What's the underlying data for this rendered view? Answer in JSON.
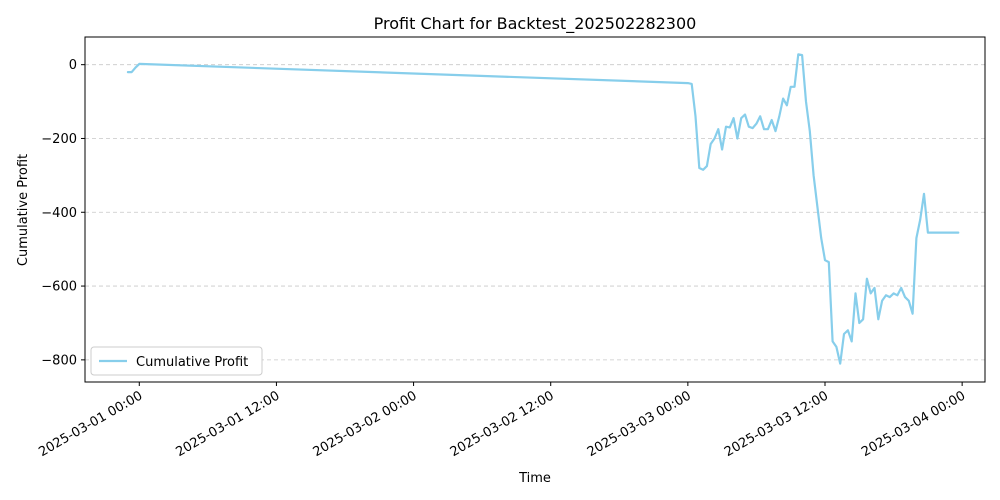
{
  "chart_data": {
    "type": "line",
    "title": "Profit Chart for Backtest_202502282300",
    "xlabel": "Time",
    "ylabel": "Cumulative Profit",
    "grid": "y-dashed",
    "legend": {
      "position": "lower-left",
      "entries": [
        "Cumulative Profit"
      ]
    },
    "color": "#87ceeb",
    "xlim": [
      "2025-02-28 19:15",
      "2025-03-04 02:00"
    ],
    "ylim": [
      -860,
      75
    ],
    "x_ticks": [
      {
        "x": "2025-03-01 00:00",
        "label": "2025-03-01 00:00"
      },
      {
        "x": "2025-03-01 12:00",
        "label": "2025-03-01 12:00"
      },
      {
        "x": "2025-03-02 00:00",
        "label": "2025-03-02 00:00"
      },
      {
        "x": "2025-03-02 12:00",
        "label": "2025-03-02 12:00"
      },
      {
        "x": "2025-03-03 00:00",
        "label": "2025-03-03 00:00"
      },
      {
        "x": "2025-03-03 12:00",
        "label": "2025-03-03 12:00"
      },
      {
        "x": "2025-03-04 00:00",
        "label": "2025-03-04 00:00"
      }
    ],
    "y_ticks": [
      0,
      -200,
      -400,
      -600,
      -800
    ],
    "series": [
      {
        "name": "Cumulative Profit",
        "x": [
          "2025-02-28 23:00",
          "2025-02-28 23:20",
          "2025-02-28 23:40",
          "2025-03-01 00:00",
          "2025-03-03 00:00",
          "2025-03-03 00:20",
          "2025-03-03 00:40",
          "2025-03-03 01:00",
          "2025-03-03 01:20",
          "2025-03-03 01:40",
          "2025-03-03 02:00",
          "2025-03-03 02:20",
          "2025-03-03 02:40",
          "2025-03-03 03:00",
          "2025-03-03 03:20",
          "2025-03-03 03:40",
          "2025-03-03 04:00",
          "2025-03-03 04:20",
          "2025-03-03 04:40",
          "2025-03-03 05:00",
          "2025-03-03 05:20",
          "2025-03-03 05:40",
          "2025-03-03 06:00",
          "2025-03-03 06:20",
          "2025-03-03 06:40",
          "2025-03-03 07:00",
          "2025-03-03 07:20",
          "2025-03-03 07:40",
          "2025-03-03 08:00",
          "2025-03-03 08:20",
          "2025-03-03 08:40",
          "2025-03-03 09:00",
          "2025-03-03 09:20",
          "2025-03-03 09:40",
          "2025-03-03 10:00",
          "2025-03-03 10:20",
          "2025-03-03 10:40",
          "2025-03-03 11:00",
          "2025-03-03 11:20",
          "2025-03-03 11:40",
          "2025-03-03 12:00",
          "2025-03-03 12:20",
          "2025-03-03 12:40",
          "2025-03-03 13:00",
          "2025-03-03 13:20",
          "2025-03-03 13:40",
          "2025-03-03 14:00",
          "2025-03-03 14:20",
          "2025-03-03 14:40",
          "2025-03-03 15:00",
          "2025-03-03 15:20",
          "2025-03-03 15:40",
          "2025-03-03 16:00",
          "2025-03-03 16:20",
          "2025-03-03 16:40",
          "2025-03-03 17:00",
          "2025-03-03 17:20",
          "2025-03-03 17:40",
          "2025-03-03 18:00",
          "2025-03-03 18:20",
          "2025-03-03 18:40",
          "2025-03-03 19:00",
          "2025-03-03 19:20",
          "2025-03-03 19:40",
          "2025-03-03 20:00",
          "2025-03-03 20:20",
          "2025-03-03 20:40",
          "2025-03-03 21:00",
          "2025-03-03 21:20",
          "2025-03-03 21:40",
          "2025-03-03 22:00",
          "2025-03-03 22:20",
          "2025-03-03 22:40",
          "2025-03-03 23:00",
          "2025-03-03 23:20",
          "2025-03-03 23:40"
        ],
        "y": [
          -20,
          -20,
          -8,
          2,
          -50,
          -52,
          -140,
          -280,
          -285,
          -275,
          -215,
          -200,
          -175,
          -230,
          -168,
          -170,
          -145,
          -200,
          -145,
          -135,
          -168,
          -172,
          -160,
          -140,
          -175,
          -175,
          -150,
          -180,
          -140,
          -92,
          -110,
          -60,
          -60,
          28,
          26,
          -100,
          -180,
          -300,
          -385,
          -470,
          -530,
          -535,
          -750,
          -765,
          -810,
          -730,
          -720,
          -750,
          -620,
          -700,
          -690,
          -580,
          -620,
          -605,
          -690,
          -640,
          -625,
          -630,
          -620,
          -625,
          -605,
          -630,
          -640,
          -675,
          -470,
          -420,
          -350,
          -455,
          -455,
          -455,
          -455,
          -455,
          -455,
          -455,
          -455,
          -455
        ]
      }
    ]
  }
}
